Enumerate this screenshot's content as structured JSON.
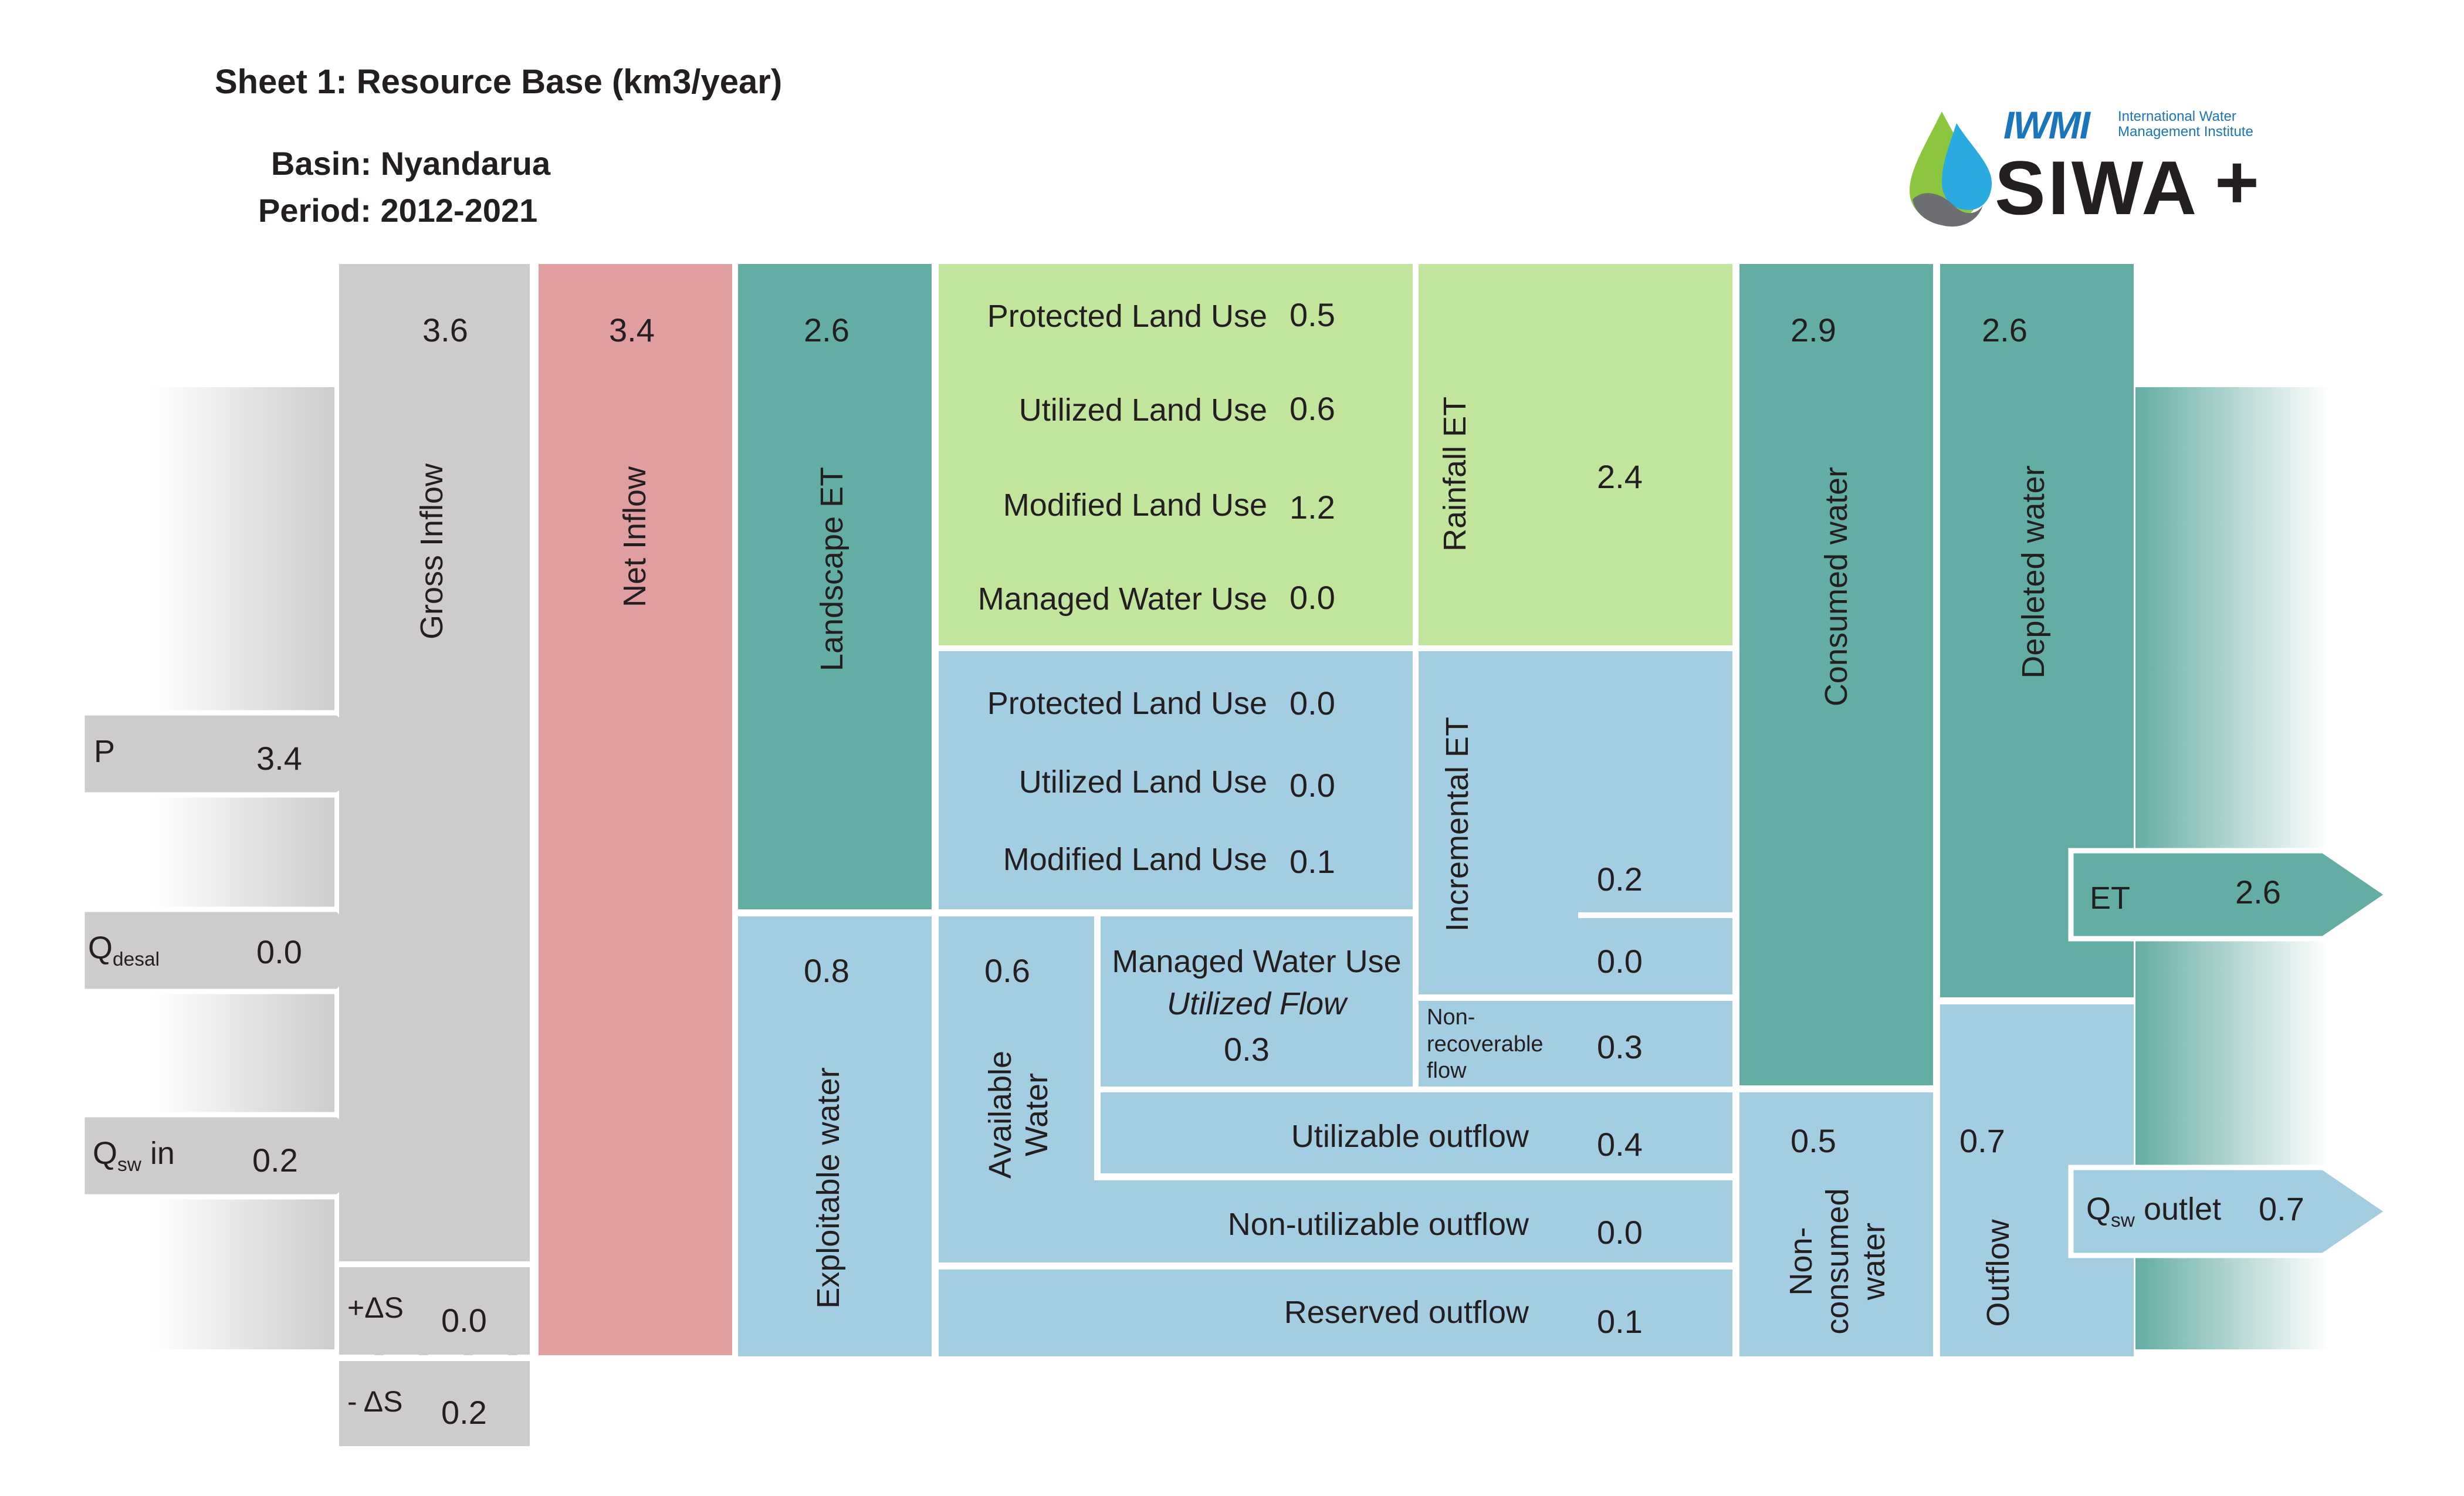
{
  "header": {
    "sheet_title": "Sheet 1: Resource Base (km3/year)",
    "basin": "Basin: Nyandarua",
    "period": "Period: 2012-2021"
  },
  "logo": {
    "org": "IWMI",
    "org_full_1": "International Water",
    "org_full_2": "Management Institute",
    "product": "SIWA",
    "plus": "+"
  },
  "colors": {
    "gray": "#cecccb",
    "pink": "#e09ea1",
    "teal": "#64ada4",
    "light_green": "#c2e59d",
    "light_blue": "#a3cee1"
  },
  "inflows": {
    "p": {
      "label": "P",
      "value": "3.4"
    },
    "q_desal": {
      "label": "Q",
      "sub": "desal",
      "value": "0.0"
    },
    "q_sw_in": {
      "label": "Q",
      "sub": "sw",
      "suffix": "in",
      "value": "0.2"
    }
  },
  "columns": {
    "gross_inflow": {
      "label": "Gross Inflow",
      "value": "3.6"
    },
    "net_inflow": {
      "label": "Net Inflow",
      "value": "3.4"
    },
    "landscape_et": {
      "label": "Landscape ET",
      "value": "2.6"
    },
    "exploitable_water": {
      "label": "Exploitable water",
      "value": "0.8"
    },
    "available_water": {
      "label_1": "Available",
      "label_2": "Water",
      "value": "0.6"
    },
    "consumed_water": {
      "label": "Consumed water",
      "value": "2.9"
    },
    "depleted_water": {
      "label": "Depleted water",
      "value": "2.6"
    },
    "non_consumed_water": {
      "label_1": "Non-",
      "label_2": "consumed",
      "label_3": "water",
      "value": "0.5"
    },
    "outflow": {
      "label": "Outflow",
      "value": "0.7"
    }
  },
  "storage": {
    "plus": {
      "label": "+ΔS",
      "value": "0.0"
    },
    "minus": {
      "label": "- ΔS",
      "value": "0.2"
    }
  },
  "rainfall_uses": [
    {
      "label": "Protected Land Use",
      "value": "0.5"
    },
    {
      "label": "Utilized Land Use",
      "value": "0.6"
    },
    {
      "label": "Modified Land Use",
      "value": "1.2"
    },
    {
      "label": "Managed Water Use",
      "value": "0.0"
    }
  ],
  "incremental_uses": [
    {
      "label": "Protected Land Use",
      "value": "0.0"
    },
    {
      "label": "Utilized Land Use",
      "value": "0.0"
    },
    {
      "label": "Modified Land Use",
      "value": "0.1"
    }
  ],
  "rainfall_et": {
    "label": "Rainfall ET",
    "value": "2.4"
  },
  "incremental_et": {
    "label": "Incremental ET",
    "value": "0.2",
    "value_2": "0.0"
  },
  "utilized_flow": {
    "label_1": "Managed Water Use",
    "label_2": "Utilized Flow",
    "value": "0.3"
  },
  "non_recoverable": {
    "label_1": "Non-",
    "label_2": "recoverable",
    "label_3": "flow",
    "value": "0.3"
  },
  "outflows": [
    {
      "label": "Utilizable outflow",
      "value": "0.4"
    },
    {
      "label": "Non-utilizable outflow",
      "value": "0.0"
    },
    {
      "label": "Reserved outflow",
      "value": "0.1"
    }
  ],
  "out_arrows": {
    "et": {
      "label": "ET",
      "value": "2.6"
    },
    "q_sw_outlet": {
      "label": "Q",
      "sub": "sw",
      "suffix": "outlet",
      "value": "0.7"
    }
  }
}
